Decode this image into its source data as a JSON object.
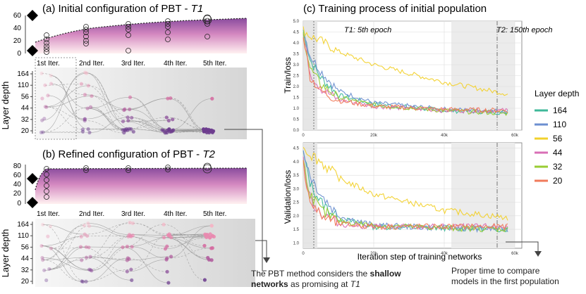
{
  "panels": {
    "a_title": "(a) Initial configuration of PBT - ",
    "a_title_em": "T1",
    "b_title": "(b) Refined configuration of PBT - ",
    "b_title_em": "T2",
    "c_title": "(c) Training process of initial population"
  },
  "iterations": [
    "1st Iter.",
    "2nd Iter.",
    "3rd Iter.",
    "4th Iter.",
    "5th Iter."
  ],
  "layer_depth_axis": {
    "label": "Layer depth",
    "ticks": [
      164,
      110,
      56,
      44,
      32,
      20
    ]
  },
  "top_a_ticks": [
    0,
    20,
    40,
    60
  ],
  "top_b_ticks": [
    0,
    20,
    40,
    60,
    80
  ],
  "train_loss_axis": {
    "label": "Train/loss",
    "ticks": [
      "5.0",
      "4.5",
      "4.0",
      "3.5",
      "3.0",
      "2.5",
      "2.0",
      "1.5",
      "1.0",
      "0.5",
      "0.0"
    ]
  },
  "val_loss_axis": {
    "label": "Validation/loss",
    "ticks": [
      "4.5",
      "4.0",
      "3.5",
      "3.0",
      "2.5",
      "2.0",
      "1.5",
      "1.0"
    ]
  },
  "x_ticks": [
    "0",
    "20k",
    "40k",
    "60k"
  ],
  "x_label": "Iteration step of training networks",
  "markers": {
    "t1": "T1: 5th epoch",
    "t2": "T2: 150th epoch"
  },
  "legend": {
    "title": "Layer depth",
    "items": [
      {
        "label": "164",
        "color": "#3fb89a"
      },
      {
        "label": "110",
        "color": "#6c8fd0"
      },
      {
        "label": "56",
        "color": "#f2d12c"
      },
      {
        "label": "44",
        "color": "#d96fb6"
      },
      {
        "label": "32",
        "color": "#99cc33"
      },
      {
        "label": "20",
        "color": "#f07a5a"
      }
    ]
  },
  "annotations": {
    "shallow_pre": "The PBT method considers the ",
    "shallow_bold": "shallow",
    "shallow_line2_bold": "networks",
    "shallow_line2_post": " as promising at ",
    "shallow_em": "T1",
    "compare_1": "Proper time to compare",
    "compare_2": "models in the first population"
  },
  "chart_data": [
    {
      "type": "line",
      "title": "Train/loss",
      "ylabel": "Train/loss",
      "xlabel": "",
      "xlim": [
        0,
        62000
      ],
      "ylim": [
        0,
        5
      ],
      "series": [
        {
          "name": "164",
          "x": [
            0,
            2000,
            5000,
            10000,
            20000,
            40000,
            60000
          ],
          "y": [
            4.6,
            3.2,
            2.4,
            1.6,
            1.2,
            0.9,
            0.8
          ]
        },
        {
          "name": "110",
          "x": [
            0,
            2000,
            5000,
            10000,
            20000,
            40000,
            60000
          ],
          "y": [
            4.6,
            3.4,
            2.7,
            1.8,
            1.25,
            0.95,
            0.85
          ]
        },
        {
          "name": "56",
          "x": [
            0,
            2000,
            5000,
            10000,
            20000,
            40000,
            60000
          ],
          "y": [
            4.6,
            4.3,
            4.1,
            3.6,
            3.0,
            2.2,
            1.6
          ]
        },
        {
          "name": "44",
          "x": [
            0,
            2000,
            5000,
            10000,
            20000,
            40000,
            60000
          ],
          "y": [
            4.4,
            2.6,
            1.9,
            1.4,
            1.1,
            0.9,
            0.9
          ]
        },
        {
          "name": "32",
          "x": [
            0,
            2000,
            5000,
            10000,
            20000,
            40000,
            60000
          ],
          "y": [
            4.4,
            2.8,
            2.1,
            1.5,
            1.15,
            0.9,
            0.75
          ]
        },
        {
          "name": "20",
          "x": [
            0,
            2000,
            5000,
            10000,
            20000,
            40000,
            60000
          ],
          "y": [
            4.4,
            2.4,
            1.8,
            1.35,
            1.1,
            0.95,
            0.9
          ]
        }
      ]
    },
    {
      "type": "line",
      "title": "Validation/loss",
      "ylabel": "Validation/loss",
      "xlabel": "Iteration step of training networks",
      "xlim": [
        0,
        62000
      ],
      "ylim": [
        0.8,
        4.7
      ],
      "series": [
        {
          "name": "164",
          "x": [
            0,
            2000,
            5000,
            10000,
            20000,
            40000,
            60000
          ],
          "y": [
            4.3,
            3.2,
            2.5,
            1.9,
            1.6,
            1.55,
            1.5
          ]
        },
        {
          "name": "110",
          "x": [
            0,
            2000,
            5000,
            10000,
            20000,
            40000,
            60000
          ],
          "y": [
            4.4,
            3.5,
            2.8,
            2.0,
            1.65,
            1.55,
            1.5
          ]
        },
        {
          "name": "56",
          "x": [
            0,
            2000,
            5000,
            10000,
            20000,
            40000,
            60000
          ],
          "y": [
            4.55,
            4.3,
            4.0,
            3.4,
            2.8,
            2.2,
            1.9
          ]
        },
        {
          "name": "44",
          "x": [
            0,
            2000,
            5000,
            10000,
            20000,
            40000,
            60000
          ],
          "y": [
            4.0,
            2.6,
            2.1,
            1.7,
            1.6,
            1.6,
            1.6
          ]
        },
        {
          "name": "32",
          "x": [
            0,
            2000,
            5000,
            10000,
            20000,
            40000,
            60000
          ],
          "y": [
            4.0,
            2.8,
            2.2,
            1.8,
            1.65,
            1.55,
            1.5
          ]
        },
        {
          "name": "20",
          "x": [
            0,
            2000,
            5000,
            10000,
            20000,
            40000,
            60000
          ],
          "y": [
            3.9,
            2.5,
            2.0,
            1.7,
            1.6,
            1.6,
            1.6
          ]
        }
      ]
    }
  ]
}
